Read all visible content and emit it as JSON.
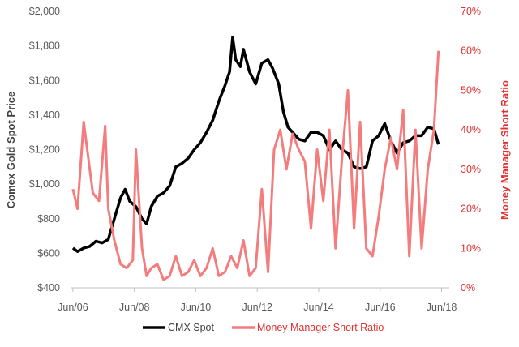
{
  "chart_data": {
    "type": "line",
    "title": "",
    "xlabel": "",
    "x_ticks": [
      "Jun/06",
      "Jun/08",
      "Jun/10",
      "Jun/12",
      "Jun/14",
      "Jun/16",
      "Jun/18"
    ],
    "x_range": [
      2006.4,
      2018.7
    ],
    "y_left": {
      "label": "Comex Gold Spot Price",
      "range": [
        400,
        2000
      ],
      "ticks": [
        "$400",
        "$600",
        "$800",
        "$1,000",
        "$1,200",
        "$1,400",
        "$1,600",
        "$1,800",
        "$2,000"
      ]
    },
    "y_right": {
      "label": "Money Manager Short Ratio",
      "range": [
        0,
        70
      ],
      "ticks": [
        "0%",
        "10%",
        "20%",
        "30%",
        "40%",
        "50%",
        "60%",
        "70%"
      ]
    },
    "grid": false,
    "legend_position": "bottom",
    "series": [
      {
        "name": "CMX Spot",
        "axis": "left",
        "color": "#000000",
        "x": [
          2006.45,
          2006.6,
          2006.8,
          2007.0,
          2007.2,
          2007.4,
          2007.6,
          2007.8,
          2008.0,
          2008.15,
          2008.3,
          2008.5,
          2008.7,
          2008.85,
          2009.0,
          2009.2,
          2009.4,
          2009.6,
          2009.8,
          2010.0,
          2010.2,
          2010.4,
          2010.6,
          2010.8,
          2011.0,
          2011.2,
          2011.4,
          2011.55,
          2011.65,
          2011.75,
          2011.9,
          2012.0,
          2012.2,
          2012.4,
          2012.6,
          2012.8,
          2012.95,
          2013.15,
          2013.3,
          2013.45,
          2013.6,
          2013.8,
          2014.0,
          2014.2,
          2014.4,
          2014.6,
          2014.8,
          2015.0,
          2015.2,
          2015.4,
          2015.6,
          2015.8,
          2016.0,
          2016.2,
          2016.4,
          2016.6,
          2016.8,
          2017.0,
          2017.2,
          2017.4,
          2017.6,
          2017.8,
          2018.0,
          2018.2,
          2018.35
        ],
        "values": [
          630,
          610,
          630,
          640,
          670,
          660,
          680,
          800,
          920,
          970,
          900,
          870,
          800,
          770,
          870,
          930,
          950,
          990,
          1100,
          1120,
          1150,
          1200,
          1240,
          1300,
          1370,
          1480,
          1570,
          1650,
          1850,
          1720,
          1680,
          1780,
          1650,
          1580,
          1700,
          1720,
          1670,
          1580,
          1420,
          1330,
          1300,
          1260,
          1250,
          1300,
          1300,
          1280,
          1200,
          1250,
          1200,
          1180,
          1100,
          1090,
          1100,
          1250,
          1280,
          1350,
          1250,
          1180,
          1240,
          1250,
          1280,
          1280,
          1330,
          1320,
          1230
        ]
      },
      {
        "name": "Money Manager Short Ratio",
        "axis": "right",
        "color": "#f47c7c",
        "x": [
          2006.45,
          2006.6,
          2006.8,
          2007.0,
          2007.1,
          2007.3,
          2007.5,
          2007.6,
          2007.8,
          2008.0,
          2008.2,
          2008.4,
          2008.5,
          2008.7,
          2008.85,
          2009.0,
          2009.2,
          2009.4,
          2009.6,
          2009.8,
          2010.0,
          2010.2,
          2010.4,
          2010.6,
          2010.8,
          2011.0,
          2011.2,
          2011.4,
          2011.6,
          2011.8,
          2012.0,
          2012.2,
          2012.4,
          2012.6,
          2012.8,
          2013.0,
          2013.2,
          2013.4,
          2013.6,
          2013.8,
          2014.0,
          2014.2,
          2014.4,
          2014.6,
          2014.8,
          2015.0,
          2015.2,
          2015.4,
          2015.6,
          2015.8,
          2016.0,
          2016.2,
          2016.4,
          2016.6,
          2016.8,
          2017.0,
          2017.2,
          2017.4,
          2017.6,
          2017.8,
          2018.0,
          2018.2,
          2018.35
        ],
        "values": [
          25,
          20,
          42,
          30,
          24,
          22,
          41,
          20,
          12,
          6,
          5,
          7,
          35,
          10,
          3,
          5,
          6,
          2,
          3,
          8,
          3,
          4,
          7,
          3,
          5,
          10,
          3,
          4,
          8,
          5,
          12,
          3,
          5,
          25,
          4,
          35,
          40,
          30,
          39,
          35,
          32,
          15,
          35,
          22,
          40,
          10,
          32,
          50,
          15,
          42,
          10,
          8,
          18,
          30,
          38,
          30,
          45,
          8,
          40,
          10,
          30,
          40,
          60
        ]
      }
    ]
  }
}
